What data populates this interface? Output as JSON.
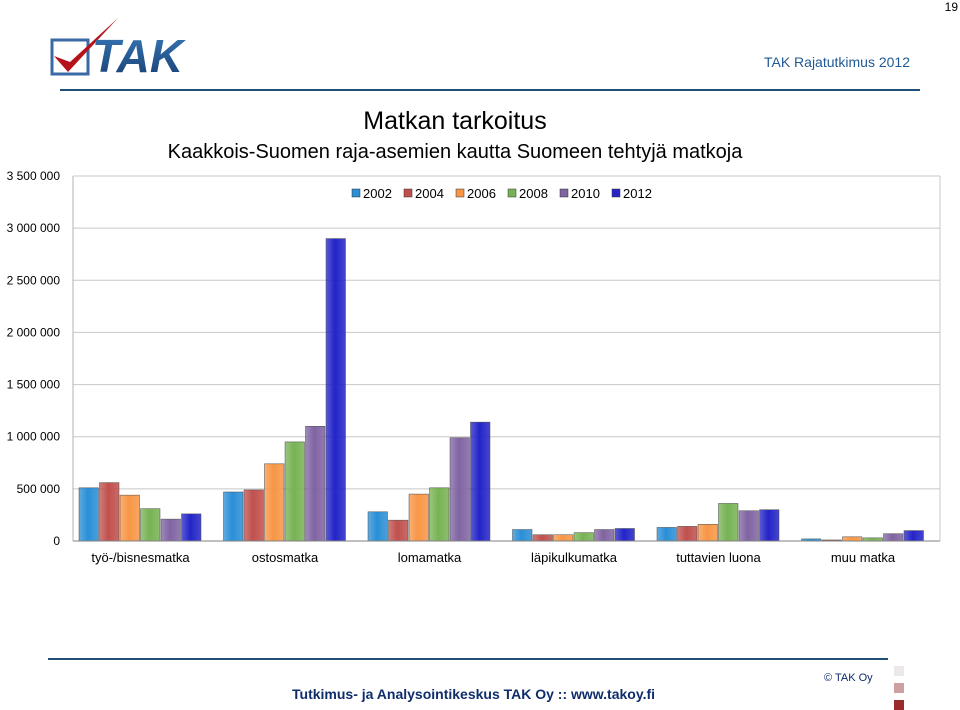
{
  "page_number": "19",
  "header": {
    "right_text": "TAK Rajatutkimus 2012",
    "logo_text": "TAK"
  },
  "footer": {
    "text": "Tutkimus- ja Analysointikeskus TAK Oy  ::  www.takoy.fi",
    "copyright": "© TAK Oy"
  },
  "colors": {
    "brand": "#1f4e79",
    "footer_text": "#0f2d6b"
  },
  "chart_data": {
    "type": "bar",
    "title": "Matkan tarkoitus",
    "subtitle": "Kaakkois-Suomen raja-asemien kautta Suomeen tehtyjä matkoja",
    "categories": [
      "työ-/bisnesmatka",
      "ostosmatka",
      "lomamatka",
      "läpikulkumatka",
      "tuttavien luona",
      "muu matka"
    ],
    "ylim": [
      0,
      3500000
    ],
    "yticks": [
      0,
      500000,
      1000000,
      1500000,
      2000000,
      2500000,
      3000000,
      3500000
    ],
    "ytick_labels": [
      "0",
      "500 000",
      "1 000 000",
      "1 500 000",
      "2 000 000",
      "2 500 000",
      "3 000 000",
      "3 500 000"
    ],
    "grid": true,
    "legend_position": "top",
    "series": [
      {
        "name": "2002",
        "color": "#2a8fd6",
        "values": [
          510000,
          470000,
          280000,
          110000,
          130000,
          20000
        ]
      },
      {
        "name": "2004",
        "color": "#c0504d",
        "values": [
          560000,
          490000,
          200000,
          60000,
          140000,
          10000
        ]
      },
      {
        "name": "2006",
        "color": "#f79646",
        "values": [
          440000,
          740000,
          450000,
          60000,
          160000,
          40000
        ]
      },
      {
        "name": "2008",
        "color": "#77b354",
        "values": [
          310000,
          950000,
          510000,
          80000,
          360000,
          30000
        ]
      },
      {
        "name": "2010",
        "color": "#8064a2",
        "values": [
          210000,
          1100000,
          990000,
          110000,
          290000,
          70000
        ]
      },
      {
        "name": "2012",
        "color": "#2424c8",
        "values": [
          260000,
          2900000,
          1140000,
          120000,
          300000,
          100000
        ]
      }
    ]
  }
}
